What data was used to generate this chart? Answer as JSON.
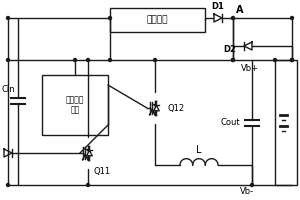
{
  "bg_color": "#ffffff",
  "line_color": "#1a1a1a",
  "line_width": 1.0,
  "fig_width": 3.0,
  "fig_height": 2.0,
  "dpi": 100,
  "labels": {
    "fuzhu": "辅助电源",
    "digital": "数字控制\n模块",
    "Cin": "Cin",
    "Q11": "Q11",
    "Q12": "Q12",
    "D1": "D1",
    "D2": "D2",
    "A": "A",
    "Vb_plus": "Vb+",
    "Vb_minus": "Vb-",
    "Cout": "Cout",
    "L": "L"
  }
}
